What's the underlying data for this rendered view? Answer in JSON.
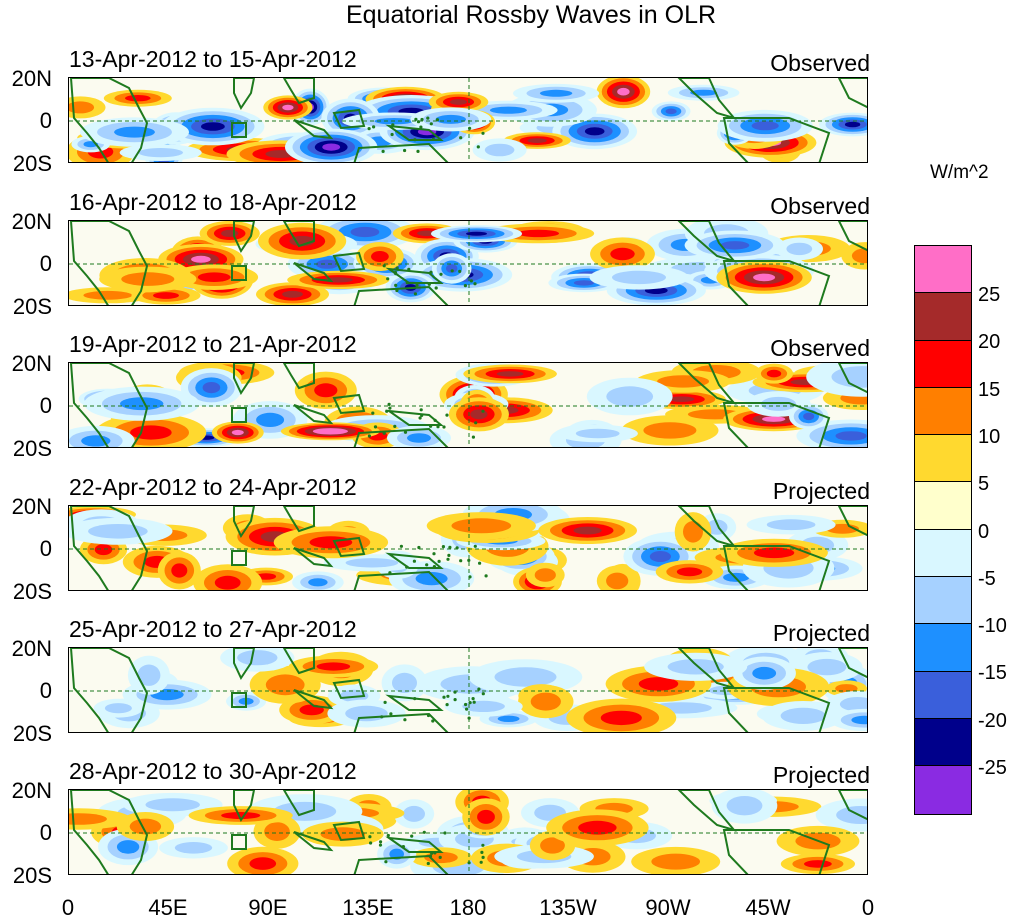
{
  "title": "Equatorial Rossby Waves in OLR",
  "panels": [
    {
      "dates": "13-Apr-2012 to 15-Apr-2012",
      "status": "Observed"
    },
    {
      "dates": "16-Apr-2012 to 18-Apr-2012",
      "status": "Observed"
    },
    {
      "dates": "19-Apr-2012 to 21-Apr-2012",
      "status": "Observed"
    },
    {
      "dates": "22-Apr-2012 to 24-Apr-2012",
      "status": "Projected"
    },
    {
      "dates": "25-Apr-2012 to 27-Apr-2012",
      "status": "Projected"
    },
    {
      "dates": "28-Apr-2012 to 30-Apr-2012",
      "status": "Projected"
    }
  ],
  "y_ticks": [
    "20N",
    "0",
    "20S"
  ],
  "x_ticks": [
    "0",
    "45E",
    "90E",
    "135E",
    "180",
    "135W",
    "90W",
    "45W",
    "0"
  ],
  "colorbar": {
    "units": "W/m^2",
    "ticks": [
      "25",
      "20",
      "15",
      "10",
      "5",
      "0",
      "-5",
      "-10",
      "-15",
      "-20",
      "-25"
    ],
    "colors": [
      "#ff6ec7",
      "#a52a2a",
      "#ff0000",
      "#ff7f00",
      "#ffd92f",
      "#ffffcc",
      "#d9f7ff",
      "#a6d1ff",
      "#1e90ff",
      "#3a5fdb",
      "#00008b",
      "#8a2be2"
    ]
  },
  "map_colors": {
    "coast": "#1e7a1e",
    "equator": "#1e7a1e"
  }
}
